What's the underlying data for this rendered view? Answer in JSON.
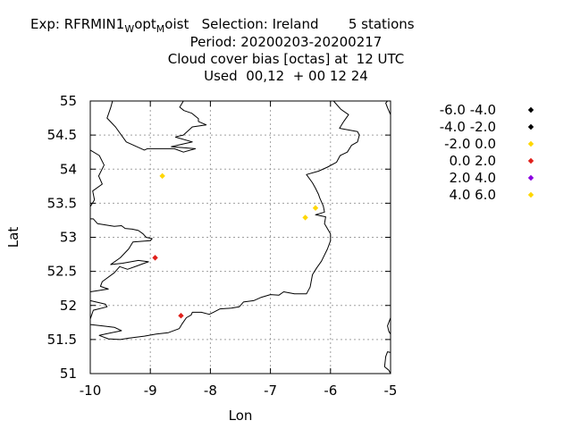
{
  "header": {
    "line1_prefix": "Exp: RFRMIN1",
    "line1_sub1": "W",
    "line1_mid": "opt",
    "line1_sub2": "M",
    "line1_suffix": "oist   Selection: Ireland       5 stations",
    "line2": "Period: 20200203-20200217",
    "line3": "Cloud cover bias [octas] at  12 UTC",
    "line4": "Used  00,12  + 00 12 24"
  },
  "chart_data": {
    "type": "scatter",
    "xlabel": "Lon",
    "ylabel": "Lat",
    "xlim": [
      -10,
      -5
    ],
    "ylim": [
      51,
      55
    ],
    "xticks": [
      -10,
      -9,
      -8,
      -7,
      -6,
      -5
    ],
    "yticks": [
      51,
      51.5,
      52,
      52.5,
      53,
      53.5,
      54,
      54.5,
      55
    ],
    "xtick_labels": [
      "-10",
      "-9",
      "-8",
      "-7",
      "-6",
      "-5"
    ],
    "ytick_labels": [
      "51",
      "51.5",
      "52",
      "52.5",
      "53",
      "53.5",
      "54",
      "54.5",
      "55"
    ],
    "grid": true,
    "legend_position": "right",
    "legend": [
      {
        "label": "-6.0 -4.0",
        "color": "#000000"
      },
      {
        "label": "-4.0 -2.0",
        "color": "#000000"
      },
      {
        "label": "-2.0 0.0",
        "color": "#ffd700"
      },
      {
        "label": "0.0 2.0",
        "color": "#e0201b"
      },
      {
        "label": "2.0 4.0",
        "color": "#8a00e0"
      },
      {
        "label": "4.0 6.0",
        "color": "#ffd700"
      }
    ],
    "points": [
      {
        "lon": -8.8,
        "lat": 53.9,
        "class": 2
      },
      {
        "lon": -6.25,
        "lat": 53.43,
        "class": 2
      },
      {
        "lon": -6.42,
        "lat": 53.29,
        "class": 2
      },
      {
        "lon": -8.92,
        "lat": 52.7,
        "class": 3
      },
      {
        "lon": -8.49,
        "lat": 51.85,
        "class": 3
      }
    ],
    "coastline": [
      [
        [
          -9.63,
          55.0
        ],
        [
          -9.66,
          54.9
        ],
        [
          -9.72,
          54.75
        ],
        [
          -9.58,
          54.62
        ],
        [
          -9.4,
          54.4
        ],
        [
          -9.1,
          54.28
        ],
        [
          -9.05,
          54.3
        ],
        [
          -8.6,
          54.3
        ],
        [
          -8.45,
          54.25
        ],
        [
          -8.25,
          54.3
        ],
        [
          -8.65,
          54.33
        ],
        [
          -8.3,
          54.4
        ],
        [
          -8.58,
          54.47
        ],
        [
          -8.55,
          54.48
        ],
        [
          -8.45,
          54.5
        ],
        [
          -8.3,
          54.62
        ],
        [
          -8.07,
          54.65
        ],
        [
          -8.2,
          54.7
        ],
        [
          -8.2,
          54.74
        ],
        [
          -8.31,
          54.82
        ],
        [
          -8.44,
          54.86
        ],
        [
          -8.51,
          54.91
        ],
        [
          -8.45,
          55.0
        ]
      ],
      [
        [
          -10.0,
          54.28
        ],
        [
          -9.85,
          54.2
        ],
        [
          -9.77,
          54.06
        ],
        [
          -9.86,
          53.9
        ],
        [
          -9.8,
          53.78
        ],
        [
          -9.96,
          53.68
        ],
        [
          -9.93,
          53.55
        ],
        [
          -10.0,
          53.45
        ]
      ],
      [
        [
          -10.0,
          53.27
        ],
        [
          -9.95,
          53.27
        ],
        [
          -9.88,
          53.2
        ],
        [
          -9.6,
          53.16
        ],
        [
          -9.48,
          53.17
        ],
        [
          -9.42,
          53.13
        ],
        [
          -9.3,
          53.12
        ],
        [
          -9.2,
          53.1
        ],
        [
          -9.12,
          53.05
        ],
        [
          -9.07,
          53.0
        ],
        [
          -8.97,
          52.98
        ],
        [
          -9.0,
          52.95
        ],
        [
          -9.29,
          52.93
        ],
        [
          -9.36,
          52.83
        ],
        [
          -9.5,
          52.7
        ],
        [
          -9.66,
          52.6
        ],
        [
          -9.46,
          52.62
        ],
        [
          -9.2,
          52.66
        ],
        [
          -9.03,
          52.64
        ],
        [
          -9.1,
          52.62
        ],
        [
          -9.22,
          52.58
        ],
        [
          -9.38,
          52.53
        ],
        [
          -9.51,
          52.57
        ],
        [
          -9.6,
          52.48
        ],
        [
          -9.8,
          52.35
        ],
        [
          -9.83,
          52.28
        ],
        [
          -9.7,
          52.24
        ],
        [
          -10.0,
          52.2
        ]
      ],
      [
        [
          -10.0,
          52.07
        ],
        [
          -9.75,
          52.02
        ],
        [
          -9.72,
          51.98
        ],
        [
          -9.95,
          51.93
        ],
        [
          -10.0,
          51.8
        ]
      ],
      [
        [
          -10.0,
          51.72
        ],
        [
          -9.8,
          51.7
        ],
        [
          -9.6,
          51.68
        ],
        [
          -9.48,
          51.63
        ],
        [
          -9.75,
          51.58
        ],
        [
          -9.85,
          51.56
        ],
        [
          -9.7,
          51.51
        ],
        [
          -9.5,
          51.5
        ],
        [
          -9.35,
          51.52
        ],
        [
          -9.1,
          51.55
        ],
        [
          -8.9,
          51.58
        ],
        [
          -8.7,
          51.6
        ],
        [
          -8.52,
          51.66
        ],
        [
          -8.47,
          51.73
        ],
        [
          -8.4,
          51.82
        ],
        [
          -8.32,
          51.86
        ],
        [
          -8.3,
          51.9
        ],
        [
          -8.15,
          51.9
        ],
        [
          -8.02,
          51.87
        ],
        [
          -7.95,
          51.9
        ],
        [
          -7.84,
          51.95
        ],
        [
          -7.65,
          51.96
        ],
        [
          -7.52,
          51.98
        ],
        [
          -7.45,
          52.05
        ],
        [
          -7.28,
          52.07
        ],
        [
          -7.15,
          52.12
        ],
        [
          -7.0,
          52.16
        ],
        [
          -6.86,
          52.15
        ],
        [
          -6.78,
          52.2
        ],
        [
          -6.6,
          52.17
        ],
        [
          -6.4,
          52.17
        ],
        [
          -6.34,
          52.27
        ],
        [
          -6.3,
          52.45
        ],
        [
          -6.23,
          52.55
        ],
        [
          -6.15,
          52.65
        ],
        [
          -6.05,
          52.83
        ],
        [
          -6.0,
          52.95
        ],
        [
          -6.0,
          53.05
        ],
        [
          -6.1,
          53.2
        ],
        [
          -6.08,
          53.3
        ],
        [
          -6.25,
          53.33
        ],
        [
          -6.1,
          53.37
        ],
        [
          -6.12,
          53.46
        ],
        [
          -6.18,
          53.58
        ],
        [
          -6.2,
          53.63
        ],
        [
          -6.25,
          53.72
        ],
        [
          -6.3,
          53.8
        ],
        [
          -6.4,
          53.92
        ],
        [
          -6.2,
          53.97
        ],
        [
          -6.05,
          54.03
        ],
        [
          -5.9,
          54.1
        ],
        [
          -5.84,
          54.2
        ],
        [
          -5.72,
          54.25
        ],
        [
          -5.65,
          54.35
        ],
        [
          -5.55,
          54.4
        ],
        [
          -5.52,
          54.5
        ],
        [
          -5.55,
          54.55
        ],
        [
          -5.85,
          54.6
        ],
        [
          -5.78,
          54.7
        ],
        [
          -5.7,
          54.8
        ],
        [
          -5.83,
          54.88
        ],
        [
          -5.95,
          55.0
        ]
      ],
      [
        [
          -5.0,
          51.82
        ],
        [
          -5.03,
          51.75
        ],
        [
          -5.05,
          51.7
        ],
        [
          -5.03,
          51.62
        ],
        [
          -5.0,
          51.58
        ]
      ],
      [
        [
          -5.0,
          51.31
        ],
        [
          -5.05,
          51.32
        ],
        [
          -5.08,
          51.25
        ],
        [
          -5.1,
          51.1
        ],
        [
          -5.03,
          51.05
        ],
        [
          -5.0,
          51.0
        ]
      ],
      [
        [
          -5.0,
          54.8
        ],
        [
          -5.05,
          54.9
        ],
        [
          -5.08,
          54.97
        ],
        [
          -5.05,
          55.0
        ]
      ],
      [
        [
          -5.0,
          54.92
        ],
        [
          -5.0,
          55.0
        ]
      ]
    ]
  }
}
